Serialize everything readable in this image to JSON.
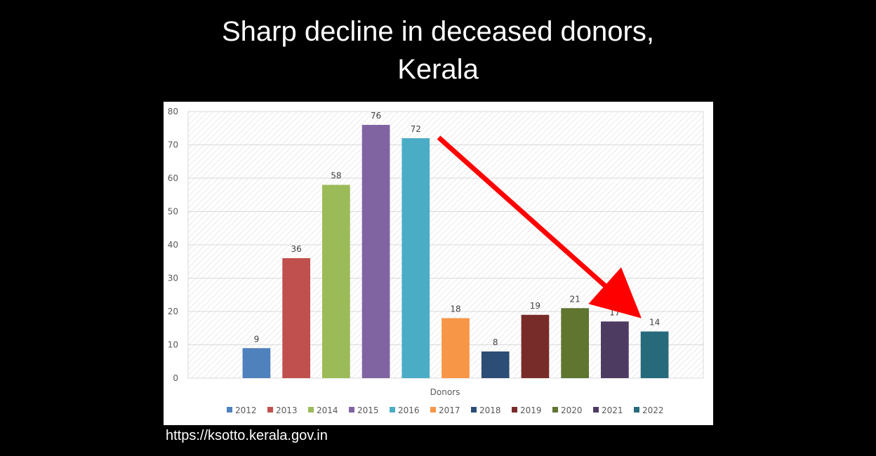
{
  "page": {
    "title_line1": "Sharp decline in deceased donors,",
    "title_line2": "Kerala",
    "source": "https://ksotto.kerala.gov.in"
  },
  "chart_data": {
    "type": "bar",
    "title": "Sharp decline in deceased donors, Kerala",
    "xlabel": "Donors",
    "ylabel": "",
    "ylim": [
      0,
      80
    ],
    "yticks": [
      0,
      10,
      20,
      30,
      40,
      50,
      60,
      70,
      80
    ],
    "grid": true,
    "legend_position": "bottom",
    "categories": [
      "Donors"
    ],
    "series": [
      {
        "name": "2012",
        "values": [
          9
        ],
        "color": "#4F81BD"
      },
      {
        "name": "2013",
        "values": [
          36
        ],
        "color": "#C0504D"
      },
      {
        "name": "2014",
        "values": [
          58
        ],
        "color": "#9BBB59"
      },
      {
        "name": "2015",
        "values": [
          76
        ],
        "color": "#8064A2"
      },
      {
        "name": "2016",
        "values": [
          72
        ],
        "color": "#4BACC6"
      },
      {
        "name": "2017",
        "values": [
          18
        ],
        "color": "#F79646"
      },
      {
        "name": "2018",
        "values": [
          8
        ],
        "color": "#2C4D75"
      },
      {
        "name": "2019",
        "values": [
          19
        ],
        "color": "#772C2A"
      },
      {
        "name": "2020",
        "values": [
          21
        ],
        "color": "#5F7530"
      },
      {
        "name": "2021",
        "values": [
          17
        ],
        "color": "#4D3B62"
      },
      {
        "name": "2022",
        "values": [
          14
        ],
        "color": "#276A7C"
      }
    ],
    "annotation": {
      "type": "arrow",
      "color": "#FF0000",
      "from_value": 72,
      "to_value": 14
    }
  }
}
